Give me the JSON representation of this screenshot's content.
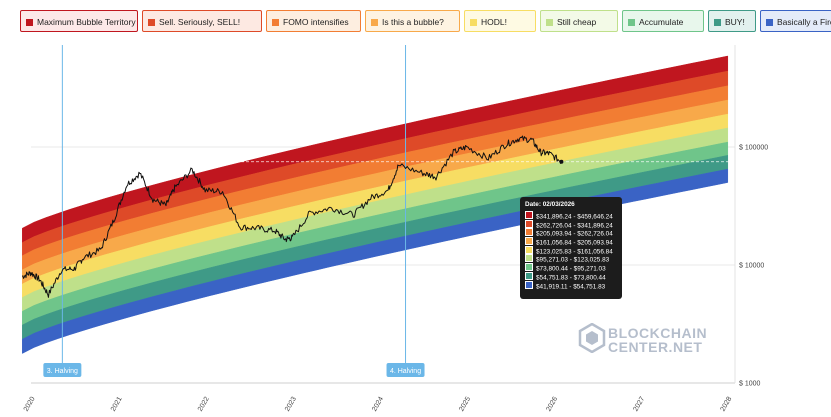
{
  "legend": [
    {
      "label": "Maximum Bubble Territory",
      "color": "#c0161f",
      "border": "#c0161f",
      "bg": "#fde8e8"
    },
    {
      "label": "Sell. Seriously, SELL!",
      "color": "#de4a28",
      "border": "#de4a28",
      "bg": "#fde9e2"
    },
    {
      "label": "FOMO intensifies",
      "color": "#f27d33",
      "border": "#f27d33",
      "bg": "#fdeee0"
    },
    {
      "label": "Is this a bubble?",
      "color": "#f8a94a",
      "border": "#f8a94a",
      "bg": "#fef3e2"
    },
    {
      "label": "HODL!",
      "color": "#f7dd63",
      "border": "#f7dd63",
      "bg": "#fefae3"
    },
    {
      "label": "Still cheap",
      "color": "#bfe08a",
      "border": "#bfe08a",
      "bg": "#f3fae7"
    },
    {
      "label": "Accumulate",
      "color": "#6fc58a",
      "border": "#6fc58a",
      "bg": "#e8f7ec"
    },
    {
      "label": "BUY!",
      "color": "#3f9a87",
      "border": "#3f9a87",
      "bg": "#e2f1ee"
    },
    {
      "label": "Basically a Fire Sale",
      "color": "#3a63c5",
      "border": "#3a63c5",
      "bg": "#e4ebf9"
    }
  ],
  "chart_data": {
    "type": "area",
    "x_ticks": [
      "2020",
      "2021",
      "2022",
      "2023",
      "2024",
      "2025",
      "2026",
      "2027",
      "2028"
    ],
    "y_ticks": [
      "$ 1000",
      "$ 10000",
      "$ 100000"
    ],
    "y_scale": "log",
    "ylim": [
      1000,
      500000
    ],
    "band_colors": [
      "#c0161f",
      "#de4a28",
      "#f27d33",
      "#f8a94a",
      "#f7dd63",
      "#bfe08a",
      "#6fc58a",
      "#3f9a87",
      "#3a63c5"
    ],
    "bands_lower_edge": [
      {
        "year": 2019.9,
        "values": [
          20500,
          15500,
          12000,
          9100,
          6900,
          5300,
          4050,
          3100,
          2350,
          1780
        ]
      },
      {
        "year": 2028.0,
        "values": [
          590000,
          440000,
          330000,
          250000,
          190000,
          145000,
          110000,
          85000,
          65000,
          50000
        ]
      }
    ],
    "price_series": [
      {
        "year": 2019.9,
        "value": 8000
      },
      {
        "year": 2020.0,
        "value": 8600
      },
      {
        "year": 2020.1,
        "value": 7500
      },
      {
        "year": 2020.2,
        "value": 5600
      },
      {
        "year": 2020.35,
        "value": 9100
      },
      {
        "year": 2020.5,
        "value": 9300
      },
      {
        "year": 2020.6,
        "value": 11500
      },
      {
        "year": 2020.8,
        "value": 13500
      },
      {
        "year": 2020.95,
        "value": 24000
      },
      {
        "year": 2021.1,
        "value": 48000
      },
      {
        "year": 2021.25,
        "value": 60000
      },
      {
        "year": 2021.4,
        "value": 36000
      },
      {
        "year": 2021.55,
        "value": 32000
      },
      {
        "year": 2021.65,
        "value": 45000
      },
      {
        "year": 2021.85,
        "value": 64000
      },
      {
        "year": 2022.0,
        "value": 43000
      },
      {
        "year": 2022.2,
        "value": 42000
      },
      {
        "year": 2022.4,
        "value": 21000
      },
      {
        "year": 2022.6,
        "value": 20500
      },
      {
        "year": 2022.8,
        "value": 19500
      },
      {
        "year": 2022.92,
        "value": 16500
      },
      {
        "year": 2023.0,
        "value": 17000
      },
      {
        "year": 2023.2,
        "value": 27500
      },
      {
        "year": 2023.45,
        "value": 30500
      },
      {
        "year": 2023.7,
        "value": 26500
      },
      {
        "year": 2023.9,
        "value": 37000
      },
      {
        "year": 2024.1,
        "value": 43000
      },
      {
        "year": 2024.22,
        "value": 70000
      },
      {
        "year": 2024.5,
        "value": 60000
      },
      {
        "year": 2024.65,
        "value": 56000
      },
      {
        "year": 2024.85,
        "value": 90000
      },
      {
        "year": 2025.0,
        "value": 100000
      },
      {
        "year": 2025.25,
        "value": 80000
      },
      {
        "year": 2025.45,
        "value": 105000
      },
      {
        "year": 2025.6,
        "value": 118000
      },
      {
        "year": 2025.75,
        "value": 115000
      },
      {
        "year": 2025.85,
        "value": 90000
      },
      {
        "year": 2025.95,
        "value": 88000
      },
      {
        "year": 2026.09,
        "value": 75000
      }
    ],
    "current_price_marker": {
      "year": 2026.09,
      "value": 75000
    },
    "halvings": [
      {
        "year": 2020.36,
        "label": "3. Halving"
      },
      {
        "year": 2024.3,
        "label": "4. Halving"
      }
    ]
  },
  "tooltip": {
    "date": "Date: 02/03/2026",
    "rows": [
      {
        "color": "#c0161f",
        "range": "$341,896.24 - $459,646.24"
      },
      {
        "color": "#de4a28",
        "range": "$262,726.04 - $341,896.24"
      },
      {
        "color": "#f27d33",
        "range": "$205,093.94 - $262,726.04"
      },
      {
        "color": "#f8a94a",
        "range": "$161,056.84 - $205,093.94"
      },
      {
        "color": "#f7dd63",
        "range": "$123,025.83 - $161,056.84"
      },
      {
        "color": "#bfe08a",
        "range": "$95,271.03 - $123,025.83"
      },
      {
        "color": "#6fc58a",
        "range": "$73,800.44 - $95,271.03"
      },
      {
        "color": "#3f9a87",
        "range": "$54,751.83 - $73,800.44"
      },
      {
        "color": "#3a63c5",
        "range": "$41,919.11 - $54,751.83"
      }
    ]
  },
  "watermark": {
    "line1": "BLOCKCHAIN",
    "line2": "CENTER.NET"
  }
}
